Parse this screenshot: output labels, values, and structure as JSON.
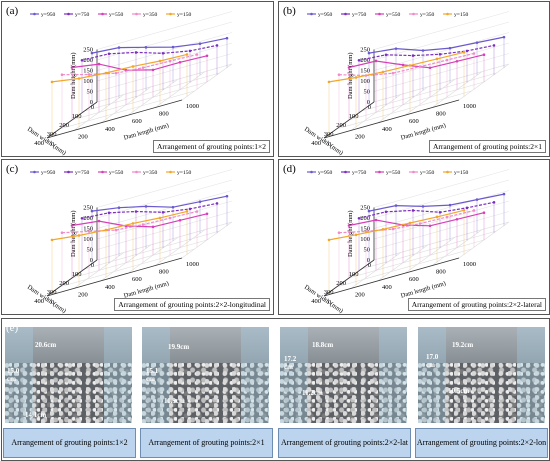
{
  "legend": [
    "y=950",
    "y=750",
    "y=550",
    "y=350",
    "y=150"
  ],
  "series_colors": [
    "#6a5acd",
    "#7b2fbe",
    "#d63fb7",
    "#f08ac8",
    "#f2a72b"
  ],
  "axis_text": {
    "z_label": "Dam height (mm)",
    "x_label": "Dam length (mm)",
    "y_label": "Dam width (mm)",
    "z_ticks": [
      "0",
      "50",
      "100",
      "150",
      "200",
      "250"
    ],
    "x_ticks": [
      "0",
      "200",
      "400",
      "600",
      "800",
      "1000"
    ],
    "y_ticks": [
      "0",
      "100",
      "200",
      "300",
      "400"
    ]
  },
  "panels": [
    {
      "label": "(a)",
      "caption": "Arrangement of grouting points:1×2"
    },
    {
      "label": "(b)",
      "caption": "Arrangement of grouting points:2×1"
    },
    {
      "label": "(c)",
      "caption": "Arrangement of grouting points:2×2-longitudinal"
    },
    {
      "label": "(d)",
      "caption": "Arrangement of grouting points:2×2-lateral"
    }
  ],
  "chart_data": [
    {
      "type": "line",
      "title": "",
      "xlabel": "Dam length (mm)",
      "ylabel": "Dam width (mm)",
      "zlabel": "Dam height (mm)",
      "xlim": [
        0,
        1000
      ],
      "ylim": [
        0,
        400
      ],
      "zlim": [
        0,
        250
      ],
      "series": [
        {
          "name": "y=950",
          "x": [
            0,
            200,
            400,
            600,
            800,
            1000
          ],
          "z": [
            250,
            240,
            205,
            170,
            150,
            140
          ]
        },
        {
          "name": "y=750",
          "x": [
            0,
            200,
            400,
            600,
            800,
            1000
          ],
          "z": [
            250,
            245,
            215,
            175,
            150,
            140
          ]
        },
        {
          "name": "y=550",
          "x": [
            0,
            200,
            400,
            600,
            800,
            1000
          ],
          "z": [
            250,
            230,
            165,
            130,
            130,
            125
          ]
        },
        {
          "name": "y=350",
          "x": [
            0,
            200,
            400,
            600,
            800,
            1000
          ],
          "z": [
            250,
            215,
            185,
            175,
            170,
            165
          ]
        },
        {
          "name": "y=150",
          "x": [
            0,
            200,
            400,
            600,
            800,
            1000
          ],
          "z": [
            250,
            230,
            220,
            215,
            205,
            200
          ]
        }
      ]
    },
    {
      "type": "line",
      "title": "",
      "xlabel": "Dam length (mm)",
      "ylabel": "Dam width (mm)",
      "zlabel": "Dam height (mm)",
      "xlim": [
        0,
        1000
      ],
      "ylim": [
        0,
        400
      ],
      "zlim": [
        0,
        250
      ],
      "series": [
        {
          "name": "y=950",
          "x": [
            0,
            200,
            400,
            600,
            800,
            1000
          ],
          "z": [
            250,
            235,
            190,
            165,
            155,
            145
          ]
        },
        {
          "name": "y=750",
          "x": [
            0,
            200,
            400,
            600,
            800,
            1000
          ],
          "z": [
            250,
            240,
            200,
            170,
            150,
            140
          ]
        },
        {
          "name": "y=550",
          "x": [
            0,
            200,
            400,
            600,
            800,
            1000
          ],
          "z": [
            250,
            245,
            190,
            140,
            135,
            130
          ]
        },
        {
          "name": "y=350",
          "x": [
            0,
            200,
            400,
            600,
            800,
            1000
          ],
          "z": [
            250,
            210,
            185,
            180,
            175,
            170
          ]
        },
        {
          "name": "y=150",
          "x": [
            0,
            200,
            400,
            600,
            800,
            1000
          ],
          "z": [
            250,
            235,
            225,
            220,
            215,
            210
          ]
        }
      ]
    },
    {
      "type": "line",
      "title": "",
      "xlabel": "Dam length (mm)",
      "ylabel": "Dam width (mm)",
      "zlabel": "Dam height (mm)",
      "xlim": [
        0,
        1000
      ],
      "ylim": [
        0,
        400
      ],
      "zlim": [
        0,
        250
      ],
      "series": [
        {
          "name": "y=950",
          "x": [
            0,
            200,
            400,
            600,
            800,
            1000
          ],
          "z": [
            250,
            230,
            200,
            160,
            150,
            140
          ]
        },
        {
          "name": "y=750",
          "x": [
            0,
            200,
            400,
            600,
            800,
            1000
          ],
          "z": [
            250,
            240,
            210,
            170,
            150,
            140
          ]
        },
        {
          "name": "y=550",
          "x": [
            0,
            200,
            400,
            600,
            800,
            1000
          ],
          "z": [
            250,
            235,
            175,
            135,
            130,
            125
          ]
        },
        {
          "name": "y=350",
          "x": [
            0,
            200,
            400,
            600,
            800,
            1000
          ],
          "z": [
            250,
            220,
            190,
            180,
            175,
            170
          ]
        },
        {
          "name": "y=150",
          "x": [
            0,
            200,
            400,
            600,
            800,
            1000
          ],
          "z": [
            250,
            235,
            225,
            220,
            210,
            205
          ]
        }
      ]
    },
    {
      "type": "line",
      "title": "",
      "xlabel": "Dam length (mm)",
      "ylabel": "Dam width (mm)",
      "zlabel": "Dam height (mm)",
      "xlim": [
        0,
        1000
      ],
      "ylim": [
        0,
        400
      ],
      "zlim": [
        0,
        250
      ],
      "series": [
        {
          "name": "y=950",
          "x": [
            0,
            200,
            400,
            600,
            800,
            1000
          ],
          "z": [
            250,
            240,
            200,
            170,
            160,
            150
          ]
        },
        {
          "name": "y=750",
          "x": [
            0,
            200,
            400,
            600,
            800,
            1000
          ],
          "z": [
            250,
            245,
            215,
            170,
            155,
            145
          ]
        },
        {
          "name": "y=550",
          "x": [
            0,
            200,
            400,
            600,
            800,
            1000
          ],
          "z": [
            250,
            240,
            180,
            140,
            135,
            130
          ]
        },
        {
          "name": "y=350",
          "x": [
            0,
            200,
            400,
            600,
            800,
            1000
          ],
          "z": [
            250,
            220,
            195,
            185,
            180,
            175
          ]
        },
        {
          "name": "y=150",
          "x": [
            0,
            200,
            400,
            600,
            800,
            1000
          ],
          "z": [
            250,
            238,
            228,
            222,
            215,
            210
          ]
        }
      ]
    }
  ],
  "photos": {
    "label": "(e)",
    "items": [
      {
        "caption": "Arrangement of grouting points:1×2",
        "dims": [
          "20.6cm",
          "15.0 cm",
          "14.1cm"
        ]
      },
      {
        "caption": "Arrangement of grouting points:2×1",
        "dims": [
          "19.9cm",
          "15.1 cm",
          "11.9cm"
        ]
      },
      {
        "caption": "Arrangement of grouting points:2×2-lat",
        "dims": [
          "18.8cm",
          "17.2 cm",
          "11.2cm"
        ]
      },
      {
        "caption": "Arrangement of grouting points:2×2-lon",
        "dims": [
          "19.2cm",
          "17.0 cm",
          "10.5cm"
        ]
      }
    ]
  }
}
